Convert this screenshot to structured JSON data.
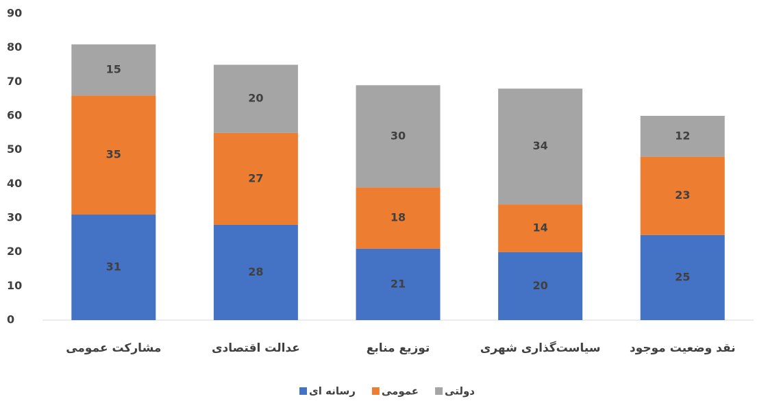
{
  "chart_data": {
    "type": "stacked_bar",
    "categories": [
      "مشارکت عمومی",
      "عدالت اقتصادی",
      "توزیع منابع",
      "سیاست‌گذاری شهری",
      "نقد وضعیت موجود"
    ],
    "series": [
      {
        "name": "رسانه ای",
        "color": "#4472c4",
        "values": [
          31,
          28,
          21,
          20,
          25
        ]
      },
      {
        "name": "عمومی",
        "color": "#ed7d31",
        "values": [
          35,
          27,
          18,
          14,
          23
        ]
      },
      {
        "name": "دولتی",
        "color": "#a5a5a5",
        "values": [
          15,
          20,
          30,
          34,
          12
        ]
      }
    ],
    "ylim": [
      0,
      90
    ],
    "yticks": [
      0,
      10,
      20,
      30,
      40,
      50,
      60,
      70,
      80,
      90
    ],
    "grid": false,
    "legend": "bottom"
  }
}
